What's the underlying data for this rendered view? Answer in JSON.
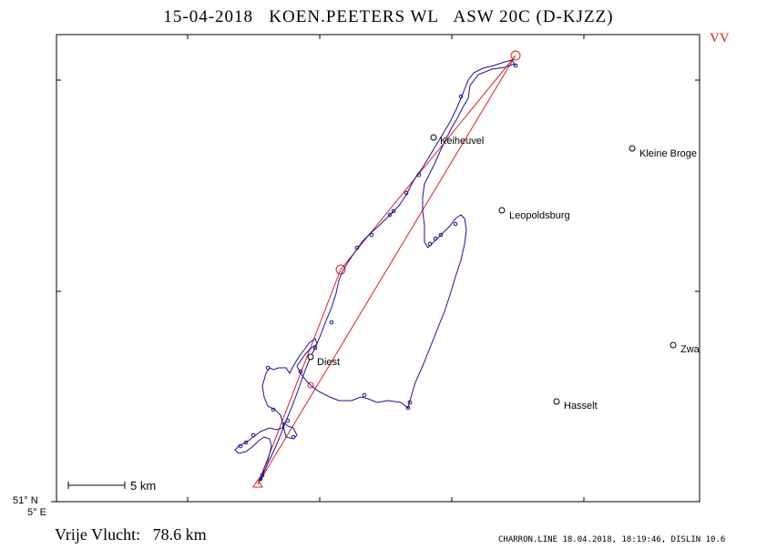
{
  "header": {
    "title": "15-04-2018   KOEN.PEETERS WL   ASW 20C (D-KJZZ)",
    "flag": "VV"
  },
  "map": {
    "places": [
      {
        "name": "Keiheuvel"
      },
      {
        "name": "Kleine Broge"
      },
      {
        "name": "Leopoldsburg"
      },
      {
        "name": "Zwa"
      },
      {
        "name": "Diest"
      },
      {
        "name": "Hasselt"
      }
    ],
    "scale_label": "5  km",
    "lat_label": "51° N",
    "lon_label": "5° E",
    "colors": {
      "track": "#1a0fa0",
      "task": "#e0201a",
      "frame": "#000000"
    }
  },
  "footer": {
    "distance": "Vrije Vlucht:   78.6 km",
    "credit": "CHARRON.LINE 18.04.2018, 18:19:46, DISLIN 10.6"
  }
}
